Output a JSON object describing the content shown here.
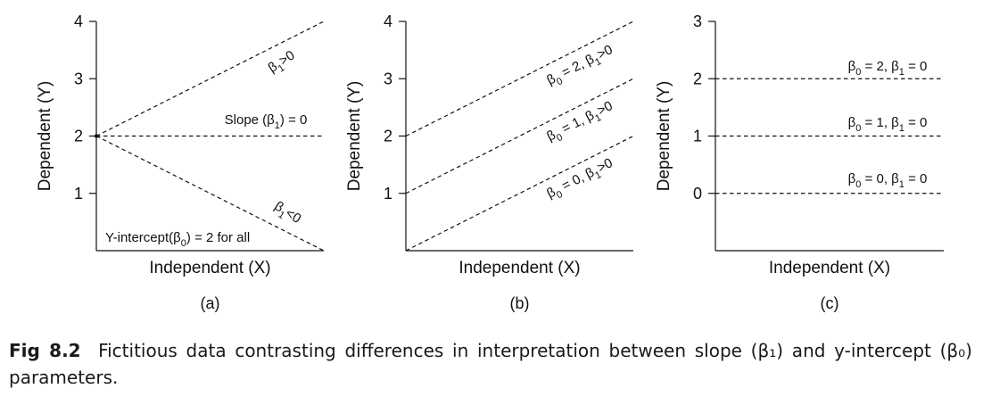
{
  "chart_data": [
    {
      "type": "line",
      "panel_label": "(a)",
      "xlabel": "Independent (X)",
      "ylabel": "Dependent (Y)",
      "ylim": [
        0,
        4
      ],
      "yticks": [
        1,
        2,
        3,
        4
      ],
      "series": [
        {
          "x": [
            0,
            1
          ],
          "y": [
            2,
            4
          ],
          "style": "dashed",
          "annotation": [
            "β",
            "1",
            ">0"
          ]
        },
        {
          "x": [
            0,
            1
          ],
          "y": [
            2,
            2
          ],
          "style": "dashed",
          "annotation": [
            "Slope (β",
            "1",
            ") = 0"
          ]
        },
        {
          "x": [
            0,
            1
          ],
          "y": [
            2,
            0
          ],
          "style": "dashed",
          "annotation": [
            "β",
            "1",
            "<0"
          ]
        }
      ],
      "note": [
        "Y-intercept(β",
        "0",
        ") = 2 for all"
      ]
    },
    {
      "type": "line",
      "panel_label": "(b)",
      "xlabel": "Independent (X)",
      "ylabel": "Dependent (Y)",
      "ylim": [
        0,
        4
      ],
      "yticks": [
        1,
        2,
        3,
        4
      ],
      "series": [
        {
          "x": [
            0,
            1
          ],
          "y": [
            2,
            4
          ],
          "style": "dashed",
          "annotation": [
            "β",
            "0",
            " = 2, β",
            "1",
            ">0"
          ]
        },
        {
          "x": [
            0,
            1
          ],
          "y": [
            1,
            3
          ],
          "style": "dashed",
          "annotation": [
            "β",
            "0",
            " = 1, β",
            "1",
            ">0"
          ]
        },
        {
          "x": [
            0,
            1
          ],
          "y": [
            0,
            2
          ],
          "style": "dashed",
          "annotation": [
            "β",
            "0",
            " = 0, β",
            "1",
            ">0"
          ]
        }
      ]
    },
    {
      "type": "line",
      "panel_label": "(c)",
      "xlabel": "Independent (X)",
      "ylabel": "Dependent (Y)",
      "ylim": [
        -1,
        3
      ],
      "yticks": [
        0,
        1,
        2,
        3
      ],
      "series": [
        {
          "x": [
            0,
            1
          ],
          "y": [
            2,
            2
          ],
          "style": "dashed",
          "annotation": [
            "β",
            "0",
            " = 2, β",
            "1",
            " = 0"
          ]
        },
        {
          "x": [
            0,
            1
          ],
          "y": [
            1,
            1
          ],
          "style": "dashed",
          "annotation": [
            "β",
            "0",
            " = 1, β",
            "1",
            " = 0"
          ]
        },
        {
          "x": [
            0,
            1
          ],
          "y": [
            0,
            0
          ],
          "style": "dashed",
          "annotation": [
            "β",
            "0",
            " = 0, β",
            "1",
            " = 0"
          ]
        }
      ]
    }
  ],
  "caption": {
    "label": "Fig 8.2",
    "text": "Fictitious data contrasting differences in interpretation between slope (β₁) and y-intercept (β₀) parameters."
  }
}
